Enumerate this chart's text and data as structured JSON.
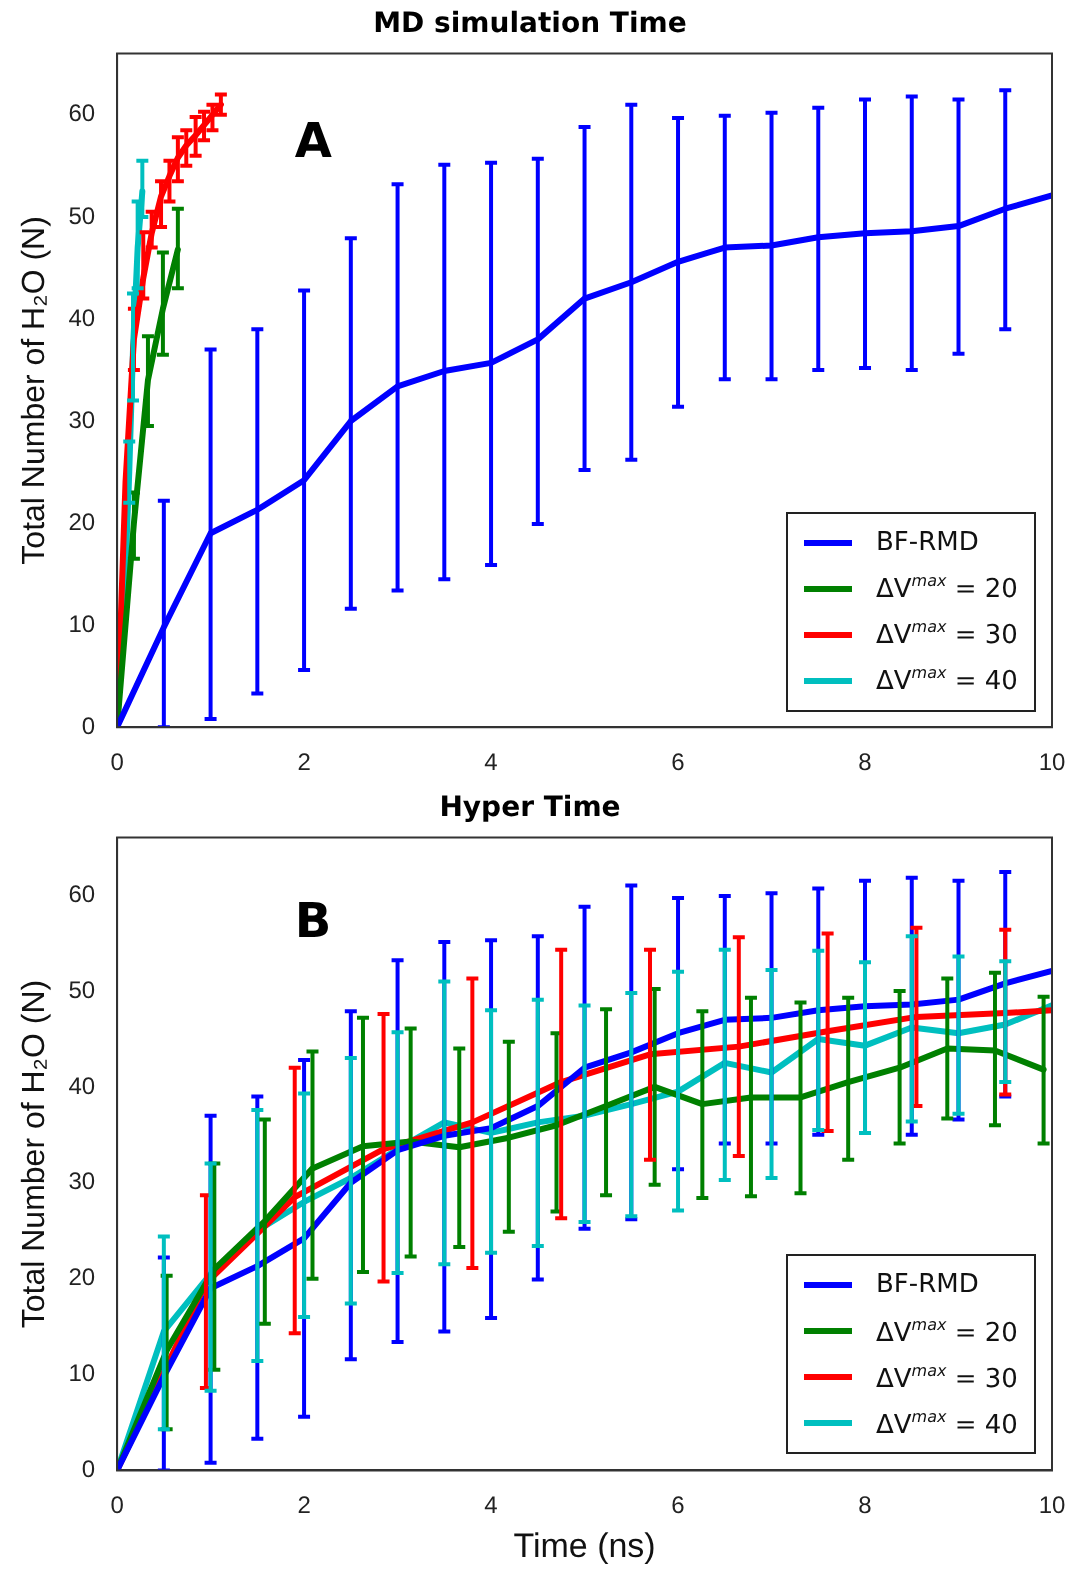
{
  "chart_data": [
    {
      "type": "line",
      "title": "MD simulation Time",
      "ylabel": "Total Number of H₂O (N)",
      "annotations": [
        "A"
      ],
      "xlim": [
        0,
        10
      ],
      "xticks": [
        0,
        2,
        4,
        6,
        8,
        10
      ],
      "ylim": [
        0,
        66
      ],
      "yticks": [
        0,
        10,
        20,
        30,
        40,
        50,
        60
      ],
      "grid": false,
      "legend": "bottom right",
      "marker": "none",
      "line_style": "solid",
      "series": [
        {
          "name": "BF-RMD",
          "color": "#0000ff",
          "x": [
            0,
            0.5,
            1,
            1.5,
            2,
            2.5,
            3,
            3.5,
            4,
            4.5,
            5,
            5.5,
            6,
            6.5,
            7,
            7.5,
            8,
            8.5,
            9,
            9.5,
            10
          ],
          "values": [
            0,
            9.8,
            19,
            21.3,
            24.2,
            30,
            33.4,
            34.9,
            35.7,
            38,
            42,
            43.6,
            45.6,
            47,
            47.2,
            48,
            48.4,
            48.6,
            49.1,
            50.8,
            52.1
          ],
          "errors": [
            null,
            [
              0,
              22.2
            ],
            [
              0.8,
              37
            ],
            [
              3.3,
              39
            ],
            [
              5.6,
              42.8
            ],
            [
              11.6,
              47.9
            ],
            [
              13.4,
              53.2
            ],
            [
              14.5,
              55.1
            ],
            [
              15.9,
              55.3
            ],
            [
              19.9,
              55.7
            ],
            [
              25.2,
              58.8
            ],
            [
              26.2,
              61
            ],
            [
              31.4,
              59.7
            ],
            [
              34.1,
              59.9
            ],
            [
              34.1,
              60.2
            ],
            [
              35,
              60.7
            ],
            [
              35.2,
              61.5
            ],
            [
              35,
              61.8
            ],
            [
              36.6,
              61.5
            ],
            [
              39,
              62.4
            ],
            null
          ]
        },
        {
          "name": "ΔV$^{max}$ = 20",
          "color": "#008000",
          "x": [
            0,
            0.18,
            0.33,
            0.49,
            0.65
          ],
          "values": [
            0,
            20,
            34,
            41,
            46.8
          ],
          "errors": [
            null,
            [
              16.5,
              23
            ],
            [
              29.5,
              38.3
            ],
            [
              36.5,
              46.5
            ],
            [
              43,
              50.8
            ]
          ]
        },
        {
          "name": "ΔV$^{max}$ = 30",
          "color": "#ff0000",
          "x": [
            0,
            0.09,
            0.18,
            0.28,
            0.37,
            0.47,
            0.56,
            0.65,
            0.74,
            0.84,
            0.93,
            1.02,
            1.11
          ],
          "values": [
            0,
            24,
            38,
            44,
            48.4,
            52,
            54,
            55.8,
            57,
            58,
            59,
            60,
            61
          ],
          "errors": [
            null,
            null,
            [
              35,
              41
            ],
            [
              42,
              48.5
            ],
            [
              47,
              50.5
            ],
            [
              49,
              53.5
            ],
            [
              51.5,
              55.5
            ],
            [
              53.5,
              57.8
            ],
            [
              55,
              58.5
            ],
            [
              56,
              59.8
            ],
            [
              57.5,
              60.3
            ],
            [
              58.5,
              61
            ],
            [
              60,
              62
            ]
          ]
        },
        {
          "name": "ΔV$^{max}$ = 40",
          "color": "#00bfbf",
          "x": [
            0,
            0.08,
            0.13,
            0.17,
            0.22,
            0.27
          ],
          "values": [
            0,
            13,
            25,
            37,
            47,
            52.5
          ],
          "errors": [
            null,
            null,
            [
              22,
              28
            ],
            [
              32,
              42.5
            ],
            [
              43,
              51.5
            ],
            [
              50,
              55.5
            ]
          ]
        }
      ]
    },
    {
      "type": "line",
      "title": "Hyper Time",
      "xlabel": "Time (ns)",
      "ylabel": "Total Number of H₂O (N)",
      "annotations": [
        "B"
      ],
      "xlim": [
        0,
        10
      ],
      "xticks": [
        0,
        2,
        4,
        6,
        8,
        10
      ],
      "ylim": [
        0,
        66
      ],
      "yticks": [
        0,
        10,
        20,
        30,
        40,
        50,
        60
      ],
      "grid": false,
      "legend": "bottom right",
      "marker": "none",
      "line_style": "solid",
      "series": [
        {
          "name": "BF-RMD",
          "color": "#0000ff",
          "x": [
            0,
            0.5,
            1,
            1.5,
            2,
            2.5,
            3,
            3.5,
            4,
            4.5,
            5,
            5.5,
            6,
            6.5,
            7,
            7.5,
            8,
            8.5,
            9,
            9.5,
            10
          ],
          "values": [
            0,
            9.8,
            19,
            21.3,
            24.2,
            30,
            33.4,
            34.9,
            35.7,
            38,
            42,
            43.6,
            45.6,
            47,
            47.2,
            48,
            48.4,
            48.6,
            49.1,
            50.8,
            52.1
          ],
          "errors": [
            null,
            [
              0,
              22.2
            ],
            [
              0.8,
              37
            ],
            [
              3.3,
              39
            ],
            [
              5.6,
              42.8
            ],
            [
              11.6,
              47.9
            ],
            [
              13.4,
              53.2
            ],
            [
              14.5,
              55.1
            ],
            [
              15.9,
              55.3
            ],
            [
              19.9,
              55.7
            ],
            [
              25.2,
              58.8
            ],
            [
              26.2,
              61
            ],
            [
              31.4,
              59.7
            ],
            [
              34.1,
              59.9
            ],
            [
              34.1,
              60.2
            ],
            [
              35,
              60.7
            ],
            [
              35.2,
              61.5
            ],
            [
              35,
              61.8
            ],
            [
              36.6,
              61.5
            ],
            [
              39,
              62.4
            ],
            null
          ]
        },
        {
          "name": "ΔV$^{max}$ = 20",
          "color": "#008000",
          "x": [
            0,
            0.53,
            1.04,
            1.58,
            2.09,
            2.63,
            3.14,
            3.66,
            4.19,
            4.7,
            5.23,
            5.75,
            6.26,
            6.78,
            7.31,
            7.82,
            8.37,
            8.88,
            9.39,
            9.91
          ],
          "values": [
            0,
            12.5,
            21,
            26,
            31.5,
            33.8,
            34.3,
            33.7,
            34.7,
            36,
            38,
            40,
            38.2,
            38.9,
            38.9,
            40.5,
            42,
            44,
            43.8,
            41.8
          ],
          "errors": [
            null,
            [
              4.3,
              20.3
            ],
            [
              10.5,
              32
            ],
            [
              15.3,
              36.6
            ],
            [
              20,
              43.7
            ],
            [
              20.7,
              47.2
            ],
            [
              22.3,
              46.1
            ],
            [
              23.3,
              44
            ],
            [
              24.9,
              44.7
            ],
            [
              27,
              45.6
            ],
            [
              28.7,
              48.1
            ],
            [
              29.8,
              50.2
            ],
            [
              28.4,
              47.9
            ],
            [
              28.6,
              49.3
            ],
            [
              28.9,
              48.8
            ],
            [
              32.4,
              49.3
            ],
            [
              34.1,
              50
            ],
            [
              36.7,
              51.3
            ],
            [
              36,
              51.9
            ],
            [
              34.1,
              49.4
            ]
          ]
        },
        {
          "name": "ΔV$^{max}$ = 30",
          "color": "#ff0000",
          "x": [
            0,
            0.95,
            1.9,
            2.85,
            3.8,
            4.75,
            5.7,
            6.65,
            7.6,
            8.55,
            9.5,
            10
          ],
          "values": [
            0,
            19.5,
            28.5,
            33.5,
            36.3,
            40.5,
            43.4,
            44.2,
            45.8,
            47.3,
            47.7,
            48
          ],
          "errors": [
            null,
            [
              8.6,
              28.7
            ],
            [
              14.3,
              42
            ],
            [
              19.7,
              47.6
            ],
            [
              21.1,
              51.3
            ],
            [
              26.3,
              54.3
            ],
            [
              32.4,
              54.3
            ],
            [
              32.8,
              55.6
            ],
            [
              35.4,
              56
            ],
            [
              38,
              56.6
            ],
            [
              39.2,
              56.4
            ],
            null
          ]
        },
        {
          "name": "ΔV$^{max}$ = 40",
          "color": "#00bfbf",
          "x": [
            0,
            0.5,
            1,
            1.5,
            2,
            2.5,
            3,
            3.5,
            4,
            4.5,
            5,
            5.5,
            6,
            6.5,
            7,
            7.5,
            8,
            8.5,
            9,
            9.5,
            10
          ],
          "values": [
            0,
            14.5,
            20.5,
            25,
            28,
            30.5,
            33.5,
            36.3,
            35.2,
            36.3,
            37,
            38.2,
            39.5,
            42.5,
            41.5,
            45,
            44.3,
            46.2,
            45.6,
            46.5,
            48.5
          ],
          "errors": [
            null,
            [
              4.3,
              24.4
            ],
            [
              8.3,
              32
            ],
            [
              11.4,
              37.6
            ],
            [
              16,
              39.3
            ],
            [
              17.4,
              43
            ],
            [
              20.6,
              45.7
            ],
            [
              21.5,
              51
            ],
            [
              22.7,
              48
            ],
            [
              23.4,
              49.1
            ],
            [
              25.9,
              48.5
            ],
            [
              26.5,
              49.8
            ],
            [
              27.1,
              52
            ],
            [
              30.3,
              54.3
            ],
            [
              30.5,
              52.2
            ],
            [
              35.5,
              54.2
            ],
            [
              35.2,
              53
            ],
            [
              36.4,
              55.7
            ],
            [
              37.2,
              53.6
            ],
            [
              40.5,
              53.1
            ],
            null
          ]
        }
      ]
    }
  ]
}
